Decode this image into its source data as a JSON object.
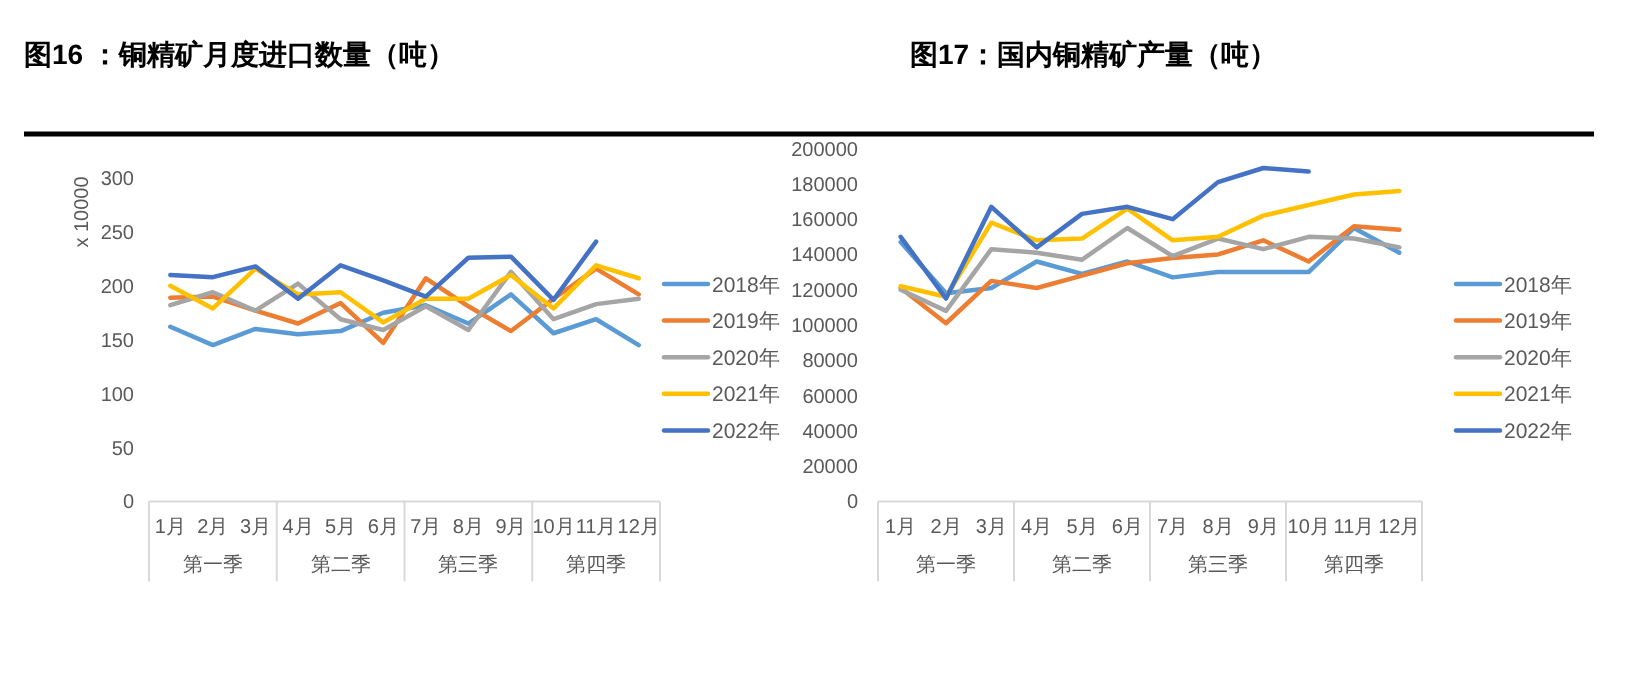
{
  "chart_data": [
    {
      "type": "line",
      "title": "图16 ：铜精矿月度进口数量（吨）",
      "ylabel": "x 10000",
      "categories": [
        "1月",
        "2月",
        "3月",
        "4月",
        "5月",
        "6月",
        "7月",
        "8月",
        "9月",
        "10月",
        "11月",
        "12月"
      ],
      "annotations": [
        "第一季",
        "第二季",
        "第三季",
        "第四季"
      ],
      "ylim": [
        0,
        300
      ],
      "yticks": [
        0,
        50,
        100,
        150,
        200,
        250,
        300
      ],
      "grid": false,
      "legend": "right",
      "series": [
        {
          "name": "2018年",
          "color": "#5b9bd5",
          "values": [
            162,
            145,
            160,
            155,
            158,
            175,
            182,
            165,
            192,
            156,
            169,
            145
          ]
        },
        {
          "name": "2019年",
          "color": "#ed7d31",
          "values": [
            189,
            190,
            177,
            165,
            184,
            147,
            207,
            181,
            158,
            188,
            216,
            192
          ]
        },
        {
          "name": "2020年",
          "color": "#a5a5a5",
          "values": [
            182,
            194,
            177,
            202,
            169,
            159,
            181,
            159,
            213,
            169,
            183,
            188
          ]
        },
        {
          "name": "2021年",
          "color": "#ffc000",
          "values": [
            200,
            179,
            216,
            192,
            194,
            166,
            188,
            188,
            210,
            179,
            219,
            207
          ]
        },
        {
          "name": "2022年",
          "color": "#4472c4",
          "values": [
            210,
            208,
            218,
            188,
            219,
            205,
            190,
            226,
            227,
            187,
            241,
            null
          ]
        }
      ]
    },
    {
      "type": "line",
      "title": "图17：国内铜精矿产量（吨）",
      "categories": [
        "1月",
        "2月",
        "3月",
        "4月",
        "5月",
        "6月",
        "7月",
        "8月",
        "9月",
        "10月",
        "11月",
        "12月"
      ],
      "annotations": [
        "第一季",
        "第二季",
        "第三季",
        "第四季"
      ],
      "ylim": [
        0,
        200000
      ],
      "yticks": [
        0,
        20000,
        40000,
        60000,
        80000,
        100000,
        120000,
        140000,
        160000,
        180000,
        200000
      ],
      "grid": false,
      "legend": "right",
      "series": [
        {
          "name": "2018年",
          "color": "#5b9bd5",
          "values": [
            147000,
            118000,
            121000,
            136000,
            129000,
            136000,
            127000,
            130000,
            130000,
            130000,
            155000,
            141000
          ]
        },
        {
          "name": "2019年",
          "color": "#ed7d31",
          "values": [
            121000,
            101000,
            125000,
            121000,
            128000,
            135000,
            138000,
            140000,
            148000,
            136000,
            156000,
            154000
          ]
        },
        {
          "name": "2020年",
          "color": "#a5a5a5",
          "values": [
            120000,
            108000,
            143000,
            141000,
            137000,
            155000,
            139000,
            149000,
            143000,
            150000,
            149000,
            144000
          ]
        },
        {
          "name": "2021年",
          "color": "#ffc000",
          "values": [
            122000,
            116000,
            158000,
            148000,
            149000,
            166000,
            148000,
            150000,
            162000,
            168000,
            174000,
            176000
          ]
        },
        {
          "name": "2022年",
          "color": "#4472c4",
          "values": [
            150000,
            115000,
            167000,
            144000,
            163000,
            167000,
            160000,
            181000,
            189000,
            187000,
            null,
            null
          ]
        }
      ]
    }
  ]
}
